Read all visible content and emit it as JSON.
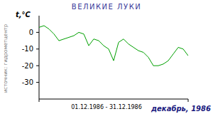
{
  "chart_data": {
    "type": "line",
    "title": "ВЕЛИКИЕ ЛУКИ",
    "y_label": "t,°C",
    "x_label": "01.12.1986 - 31.12.1986",
    "source": "источник: гидрометцентр",
    "caption": "декабрь, 1986",
    "x": [
      1,
      2,
      3,
      4,
      5,
      6,
      7,
      8,
      9,
      10,
      11,
      12,
      13,
      14,
      15,
      16,
      17,
      18,
      19,
      20,
      21,
      22,
      23,
      24,
      25,
      26,
      27,
      28,
      29,
      30,
      31
    ],
    "values": [
      3,
      4,
      2,
      -1,
      -5,
      -4,
      -3,
      -2,
      0,
      -1,
      -8,
      -4,
      -5,
      -8,
      -10,
      -17,
      -6,
      -4,
      -7,
      -9,
      -11,
      -12,
      -15,
      -20,
      -20,
      -19,
      -17,
      -13,
      -9,
      -10,
      -14
    ],
    "color": "#00a000",
    "xlim": [
      1,
      31
    ],
    "ylim": [
      -40,
      10
    ],
    "yticks": [
      0,
      -10,
      -20,
      -30
    ],
    "xticks": [
      1,
      31
    ],
    "tick_labels": "y",
    "grid": false
  }
}
